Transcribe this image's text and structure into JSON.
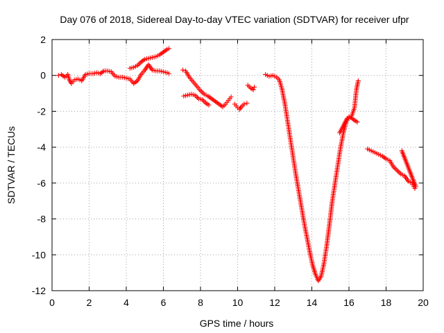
{
  "chart_data": {
    "type": "scatter",
    "title": "Day 076 of 2018, Sidereal Day-to-day VTEC variation (SDTVAR) for receiver ufpr",
    "xlabel": "GPS time / hours",
    "ylabel": "SDTVAR / TECUs",
    "xlim": [
      0,
      20
    ],
    "ylim": [
      -12,
      2
    ],
    "xticks": [
      0,
      2,
      4,
      6,
      8,
      10,
      12,
      14,
      16,
      18,
      20
    ],
    "yticks": [
      -12,
      -10,
      -8,
      -6,
      -4,
      -2,
      0,
      2
    ],
    "grid": true,
    "marker": "+",
    "color": "#ff0000",
    "series": [
      {
        "name": "SDTVAR",
        "segments": [
          [
            [
              0.35,
              0.0
            ],
            [
              0.5,
              0.05
            ],
            [
              0.7,
              -0.1
            ],
            [
              0.85,
              0.05
            ],
            [
              0.95,
              -0.3
            ],
            [
              1.05,
              -0.45
            ],
            [
              1.2,
              -0.25
            ],
            [
              1.4,
              -0.2
            ],
            [
              1.6,
              -0.3
            ],
            [
              1.8,
              0.05
            ],
            [
              2.0,
              0.1
            ],
            [
              2.2,
              0.1
            ],
            [
              2.4,
              0.15
            ],
            [
              2.6,
              0.1
            ],
            [
              2.8,
              0.25
            ],
            [
              3.0,
              0.25
            ],
            [
              3.2,
              0.2
            ],
            [
              3.4,
              -0.05
            ],
            [
              3.6,
              -0.1
            ],
            [
              3.8,
              -0.1
            ],
            [
              4.0,
              -0.15
            ],
            [
              4.2,
              -0.2
            ],
            [
              4.4,
              -0.45
            ],
            [
              4.6,
              -0.3
            ],
            [
              4.8,
              0.05
            ],
            [
              5.0,
              0.3
            ],
            [
              5.2,
              0.6
            ],
            [
              5.4,
              0.3
            ],
            [
              5.6,
              0.25
            ],
            [
              5.8,
              0.25
            ],
            [
              6.0,
              0.2
            ],
            [
              6.2,
              0.15
            ],
            [
              6.3,
              0.1
            ]
          ],
          [
            [
              4.2,
              0.4
            ],
            [
              4.4,
              0.45
            ],
            [
              4.6,
              0.55
            ],
            [
              4.8,
              0.75
            ],
            [
              5.0,
              0.9
            ],
            [
              5.2,
              0.95
            ],
            [
              5.4,
              1.0
            ],
            [
              5.6,
              1.05
            ],
            [
              5.8,
              1.15
            ],
            [
              6.0,
              1.3
            ],
            [
              6.2,
              1.45
            ],
            [
              6.3,
              1.5
            ]
          ],
          [
            [
              7.05,
              0.3
            ],
            [
              7.2,
              0.25
            ],
            [
              7.4,
              -0.1
            ],
            [
              7.6,
              -0.35
            ],
            [
              7.8,
              -0.6
            ],
            [
              8.0,
              -0.85
            ],
            [
              8.2,
              -1.05
            ],
            [
              8.4,
              -1.15
            ],
            [
              8.6,
              -1.3
            ],
            [
              8.8,
              -1.45
            ],
            [
              9.0,
              -1.6
            ],
            [
              9.2,
              -1.75
            ],
            [
              9.35,
              -1.6
            ],
            [
              9.5,
              -1.4
            ],
            [
              9.65,
              -1.2
            ]
          ],
          [
            [
              7.1,
              -1.15
            ],
            [
              7.3,
              -1.1
            ],
            [
              7.5,
              -1.05
            ],
            [
              7.7,
              -1.1
            ],
            [
              7.9,
              -1.3
            ],
            [
              8.1,
              -1.35
            ],
            [
              8.3,
              -1.55
            ],
            [
              8.45,
              -1.65
            ]
          ],
          [
            [
              9.85,
              -1.6
            ],
            [
              10.0,
              -1.8
            ],
            [
              10.1,
              -1.9
            ],
            [
              10.2,
              -1.75
            ],
            [
              10.35,
              -1.6
            ],
            [
              10.5,
              -1.55
            ]
          ],
          [
            [
              10.55,
              -0.55
            ],
            [
              10.7,
              -0.7
            ],
            [
              10.85,
              -0.8
            ],
            [
              10.9,
              -0.65
            ]
          ],
          [
            [
              11.5,
              0.05
            ],
            [
              11.7,
              -0.05
            ],
            [
              11.9,
              0.0
            ],
            [
              12.1,
              -0.1
            ],
            [
              12.25,
              -0.25
            ],
            [
              12.4,
              -0.8
            ],
            [
              12.55,
              -1.6
            ],
            [
              12.7,
              -2.6
            ],
            [
              12.85,
              -3.6
            ],
            [
              13.0,
              -4.6
            ],
            [
              13.15,
              -5.6
            ],
            [
              13.3,
              -6.5
            ],
            [
              13.45,
              -7.4
            ],
            [
              13.6,
              -8.3
            ],
            [
              13.75,
              -9.1
            ],
            [
              13.9,
              -9.9
            ],
            [
              14.05,
              -10.6
            ],
            [
              14.2,
              -11.1
            ],
            [
              14.35,
              -11.45
            ],
            [
              14.5,
              -11.2
            ],
            [
              14.65,
              -10.5
            ],
            [
              14.8,
              -9.5
            ],
            [
              14.95,
              -8.3
            ],
            [
              15.1,
              -7.0
            ],
            [
              15.25,
              -6.0
            ],
            [
              15.4,
              -5.0
            ],
            [
              15.55,
              -4.0
            ],
            [
              15.7,
              -3.2
            ],
            [
              15.85,
              -2.6
            ],
            [
              16.0,
              -2.3
            ],
            [
              16.15,
              -2.25
            ],
            [
              16.3,
              -1.8
            ],
            [
              16.4,
              -0.8
            ],
            [
              16.5,
              -0.3
            ]
          ],
          [
            [
              15.5,
              -3.2
            ],
            [
              15.7,
              -2.8
            ],
            [
              15.9,
              -2.4
            ],
            [
              16.1,
              -2.35
            ],
            [
              16.3,
              -2.5
            ],
            [
              16.45,
              -2.6
            ]
          ],
          [
            [
              17.0,
              -4.1
            ],
            [
              17.2,
              -4.2
            ],
            [
              17.4,
              -4.3
            ],
            [
              17.6,
              -4.4
            ],
            [
              17.8,
              -4.5
            ],
            [
              18.0,
              -4.65
            ],
            [
              18.2,
              -4.75
            ],
            [
              18.4,
              -5.1
            ],
            [
              18.6,
              -5.3
            ],
            [
              18.8,
              -5.5
            ],
            [
              19.0,
              -5.6
            ],
            [
              19.2,
              -5.9
            ],
            [
              19.4,
              -6.0
            ],
            [
              19.55,
              -6.3
            ]
          ],
          [
            [
              18.85,
              -4.2
            ],
            [
              19.0,
              -4.6
            ],
            [
              19.15,
              -5.0
            ],
            [
              19.3,
              -5.4
            ],
            [
              19.45,
              -5.8
            ],
            [
              19.6,
              -6.2
            ]
          ]
        ]
      }
    ]
  }
}
